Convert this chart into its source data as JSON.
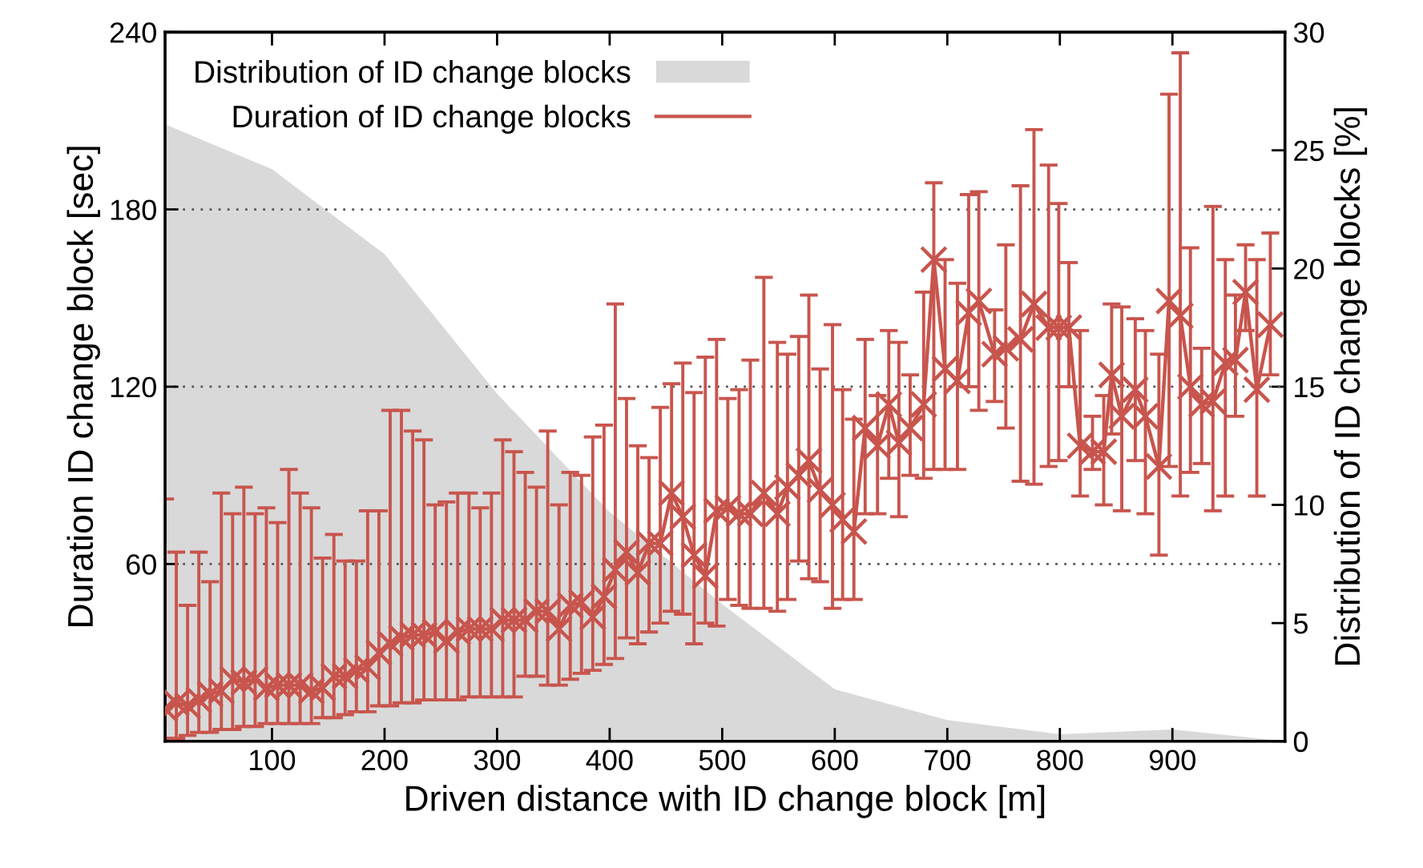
{
  "chart_data": {
    "type": "line",
    "xlabel": "Driven distance with ID change block [m]",
    "ylabel": "Duration ID change block [sec]",
    "y2label": "Distribution of ID change blocks [%]",
    "xlim": [
      5,
      1000
    ],
    "xticks": [
      100,
      200,
      300,
      400,
      500,
      600,
      700,
      800,
      900
    ],
    "ylim": [
      0,
      240
    ],
    "yticks": [
      60,
      120,
      180,
      240
    ],
    "y2lim": [
      0,
      30
    ],
    "y2ticks": [
      0,
      5,
      10,
      15,
      20,
      25,
      30
    ],
    "grid": "y",
    "legend": "top left",
    "series": [
      {
        "name": "Distribution of ID change blocks",
        "type": "area",
        "axis": "y2",
        "color": "#d9d9d9",
        "x": [
          5,
          100,
          200,
          300,
          400,
          500,
          600,
          700,
          800,
          900,
          1000
        ],
        "values": [
          26.1,
          24.2,
          20.6,
          14.7,
          9.7,
          5.8,
          2.2,
          0.9,
          0.3,
          0.5,
          0
        ]
      },
      {
        "name": "Duration of ID change blocks",
        "marker": "cross",
        "line_style": "solid",
        "color": "#c8554d",
        "x": [
          5,
          15,
          25,
          35,
          45,
          55,
          65,
          75,
          85,
          95,
          105,
          115,
          125,
          135,
          145,
          155,
          165,
          175,
          185,
          195,
          205,
          215,
          225,
          235,
          245,
          255,
          265,
          275,
          285,
          295,
          305,
          315,
          325,
          335,
          345,
          355,
          365,
          375,
          385,
          395,
          405,
          415,
          425,
          435,
          445,
          455,
          465,
          475,
          485,
          495,
          505,
          515,
          525,
          537,
          549,
          558,
          568,
          577,
          587,
          598,
          607,
          617,
          627,
          638,
          648,
          657,
          667,
          679,
          688,
          698,
          709,
          719,
          728,
          742,
          752,
          765,
          777,
          790,
          799,
          808,
          818,
          829,
          839,
          846,
          855,
          867,
          876,
          888,
          897,
          907,
          916,
          926,
          936,
          947,
          956,
          965,
          975,
          987
        ],
        "values": [
          11,
          13,
          12,
          14,
          16,
          17,
          21,
          20,
          21,
          18,
          19,
          19,
          19,
          17,
          18,
          22,
          22,
          24,
          25,
          30,
          33,
          35,
          36,
          36,
          37,
          34,
          37,
          38,
          38,
          38,
          41,
          41,
          41,
          44,
          44,
          38,
          46,
          47,
          42,
          49,
          58,
          64,
          57,
          67,
          67,
          84,
          76,
          63,
          56,
          78,
          79,
          77,
          77,
          84,
          77,
          86,
          90,
          95,
          85,
          80,
          75,
          71,
          106,
          100,
          114,
          101,
          106,
          114,
          163,
          126,
          122,
          145,
          149,
          131,
          133,
          136,
          148,
          140,
          140,
          140,
          100,
          98,
          98,
          124,
          110,
          119,
          110,
          93,
          149,
          144,
          120,
          114,
          115,
          128,
          129,
          152,
          119,
          141
        ],
        "errors": [
          [
            1,
            82
          ],
          [
            1,
            64
          ],
          [
            2,
            46
          ],
          [
            3,
            64
          ],
          [
            3,
            54
          ],
          [
            4,
            84
          ],
          [
            4,
            77
          ],
          [
            5,
            86
          ],
          [
            5,
            77
          ],
          [
            6,
            79
          ],
          [
            6,
            74
          ],
          [
            6,
            92
          ],
          [
            6,
            84
          ],
          [
            6,
            79
          ],
          [
            8,
            62
          ],
          [
            8,
            70
          ],
          [
            9,
            61
          ],
          [
            10,
            61
          ],
          [
            10,
            78
          ],
          [
            12,
            78
          ],
          [
            12,
            112
          ],
          [
            13,
            112
          ],
          [
            13,
            105
          ],
          [
            14,
            102
          ],
          [
            14,
            80
          ],
          [
            14,
            81
          ],
          [
            14,
            84
          ],
          [
            15,
            84
          ],
          [
            15,
            79
          ],
          [
            15,
            84
          ],
          [
            15,
            102
          ],
          [
            15,
            98
          ],
          [
            22,
            91
          ],
          [
            22,
            86
          ],
          [
            19,
            105
          ],
          [
            19,
            80
          ],
          [
            21,
            91
          ],
          [
            23,
            90
          ],
          [
            24,
            103
          ],
          [
            26,
            107
          ],
          [
            28,
            148
          ],
          [
            35,
            116
          ],
          [
            33,
            100
          ],
          [
            37,
            96
          ],
          [
            40,
            113
          ],
          [
            44,
            121
          ],
          [
            43,
            128
          ],
          [
            33,
            118
          ],
          [
            40,
            130
          ],
          [
            39,
            136
          ],
          [
            48,
            116
          ],
          [
            46,
            119
          ],
          [
            45,
            129
          ],
          [
            45,
            157
          ],
          [
            44,
            135
          ],
          [
            48,
            131
          ],
          [
            61,
            137
          ],
          [
            55,
            151
          ],
          [
            54,
            126
          ],
          [
            45,
            141
          ],
          [
            48,
            119
          ],
          [
            48,
            109
          ],
          [
            77,
            136
          ],
          [
            77,
            117
          ],
          [
            89,
            139
          ],
          [
            76,
            135
          ],
          [
            90,
            124
          ],
          [
            89,
            152
          ],
          [
            92,
            189
          ],
          [
            92,
            163
          ],
          [
            92,
            155
          ],
          [
            120,
            185
          ],
          [
            112,
            186
          ],
          [
            115,
            146
          ],
          [
            106,
            168
          ],
          [
            88,
            188
          ],
          [
            87,
            207
          ],
          [
            93,
            195
          ],
          [
            95,
            182
          ],
          [
            120,
            162
          ],
          [
            83,
            139
          ],
          [
            92,
            110
          ],
          [
            80,
            117
          ],
          [
            104,
            148
          ],
          [
            78,
            147
          ],
          [
            95,
            143
          ],
          [
            77,
            139
          ],
          [
            63,
            131
          ],
          [
            93,
            219
          ],
          [
            83,
            233
          ],
          [
            91,
            167
          ],
          [
            94,
            133
          ],
          [
            78,
            181
          ],
          [
            83,
            163
          ],
          [
            110,
            151
          ],
          [
            139,
            168
          ],
          [
            83,
            163
          ],
          [
            124,
            172
          ]
        ]
      }
    ]
  }
}
